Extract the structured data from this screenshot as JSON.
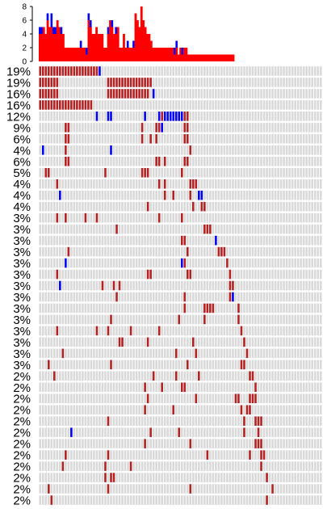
{
  "chart_data": [
    {
      "type": "bar",
      "stacked": true,
      "xlim": [
        0,
        100
      ],
      "ylim": [
        0,
        8
      ],
      "yticks": [
        "0",
        "2",
        "4",
        "6",
        "8"
      ],
      "colors": {
        "red": "#ff0000",
        "blue": "#0000ff"
      },
      "red": [
        4,
        4,
        5,
        4,
        6,
        5,
        5,
        4,
        4,
        6,
        5,
        4,
        4,
        2,
        2,
        2,
        2,
        2,
        2,
        2,
        2,
        2,
        2,
        2,
        1,
        6,
        5,
        4,
        4,
        5,
        4,
        4,
        4,
        2,
        2,
        4,
        6,
        5,
        4,
        4,
        5,
        2,
        2,
        4,
        2,
        2,
        2,
        2,
        2,
        7,
        6,
        5,
        8,
        6,
        5,
        4,
        4,
        3,
        2,
        2,
        2,
        2,
        2,
        2,
        2,
        2,
        2,
        2,
        2,
        1,
        2,
        1,
        2,
        1,
        2,
        2,
        1,
        1,
        1,
        1,
        1,
        1,
        1,
        1,
        1,
        1,
        1,
        1,
        1,
        1,
        1,
        1,
        1,
        1,
        1,
        1,
        1,
        1,
        1,
        1
      ],
      "blue": [
        1,
        1,
        0,
        0,
        1,
        0,
        2,
        1,
        1,
        0,
        0,
        1,
        0,
        0,
        0,
        0,
        0,
        0,
        0,
        0,
        0,
        1,
        0,
        0,
        1,
        1,
        1,
        0,
        0,
        0,
        0,
        0,
        0,
        0,
        0,
        1,
        0,
        1,
        0,
        1,
        0,
        0,
        0,
        0,
        0,
        1,
        0,
        0,
        1,
        0,
        0,
        0,
        0,
        0,
        0,
        0,
        0,
        0,
        0,
        0,
        0,
        0,
        0,
        0,
        0,
        0,
        0,
        0,
        0,
        1,
        1,
        0,
        0,
        1,
        0,
        0,
        0,
        0,
        0,
        0,
        0,
        0,
        0,
        0,
        0,
        0,
        0,
        0,
        0,
        0,
        0,
        0,
        0,
        0,
        0,
        0,
        0,
        0,
        0,
        0
      ]
    },
    {
      "type": "heatmap",
      "n_columns": 100,
      "colors": {
        "background": "#d9d9d9",
        "red": "#b22222",
        "blue": "#0000ff",
        "border": "#aaaaaa"
      },
      "rows": [
        {
          "label": "19%",
          "red": [
            0,
            1,
            2,
            3,
            4,
            5,
            6,
            7,
            8,
            9,
            10,
            11,
            12,
            13,
            14,
            15,
            16,
            17,
            18,
            19,
            20
          ],
          "blue": [
            21
          ]
        },
        {
          "label": "19%",
          "red": [
            0,
            1,
            2,
            3,
            4,
            5,
            6,
            24,
            25,
            26,
            27,
            28,
            29,
            30,
            31,
            32,
            33,
            34,
            35,
            36,
            37,
            38,
            39
          ],
          "blue": []
        },
        {
          "label": "16%",
          "red": [
            0,
            1,
            2,
            3,
            4,
            5,
            6,
            24,
            25,
            26,
            27,
            28,
            29,
            30,
            31,
            32,
            33,
            34,
            35,
            36,
            37,
            38
          ],
          "blue": [
            40
          ]
        },
        {
          "label": "16%",
          "red": [
            0,
            1,
            2,
            3,
            4,
            5,
            6,
            7,
            8,
            9,
            10,
            11,
            12,
            13,
            14,
            15,
            16,
            17,
            18
          ],
          "blue": []
        },
        {
          "label": "12%",
          "red": [
            43,
            51,
            52
          ],
          "blue": [
            20,
            24,
            25,
            37,
            42,
            44,
            45,
            46,
            47,
            48,
            49,
            50
          ]
        },
        {
          "label": "9%",
          "red": [
            9,
            10,
            36,
            41,
            42,
            51,
            52
          ],
          "blue": [
            43
          ]
        },
        {
          "label": "6%",
          "red": [
            9,
            10,
            36,
            39,
            41,
            51,
            52
          ],
          "blue": []
        },
        {
          "label": "4%",
          "red": [
            9,
            53
          ],
          "blue": [
            1,
            25
          ]
        },
        {
          "label": "6%",
          "red": [
            9,
            10,
            41,
            42,
            44,
            51,
            52
          ],
          "blue": []
        },
        {
          "label": "5%",
          "red": [
            2,
            3,
            23,
            36,
            37,
            38,
            50
          ],
          "blue": []
        },
        {
          "label": "4%",
          "red": [
            6,
            42,
            44,
            53,
            54,
            55
          ],
          "blue": []
        },
        {
          "label": "4%",
          "red": [
            44,
            47,
            53
          ],
          "blue": [
            7,
            56,
            57
          ]
        },
        {
          "label": "4%",
          "red": [
            38,
            54,
            57,
            58
          ],
          "blue": []
        },
        {
          "label": "3%",
          "red": [
            6,
            9,
            16,
            20,
            42,
            50
          ],
          "blue": []
        },
        {
          "label": "3%",
          "red": [
            27,
            58,
            59,
            60
          ],
          "blue": []
        },
        {
          "label": "3%",
          "red": [
            50,
            51
          ],
          "blue": [
            62
          ]
        },
        {
          "label": "3%",
          "red": [
            10,
            52,
            63,
            64,
            65
          ],
          "blue": []
        },
        {
          "label": "3%",
          "red": [
            51,
            66
          ],
          "blue": [
            9,
            50
          ]
        },
        {
          "label": "3%",
          "red": [
            6,
            38,
            39,
            52,
            53,
            67
          ],
          "blue": []
        },
        {
          "label": "3%",
          "red": [
            22,
            26,
            28,
            67,
            68
          ],
          "blue": [
            7
          ]
        },
        {
          "label": "3%",
          "red": [
            27,
            51,
            67
          ],
          "blue": [
            68
          ]
        },
        {
          "label": "3%",
          "red": [
            51,
            58,
            59,
            60,
            61,
            70
          ],
          "blue": []
        },
        {
          "label": "3%",
          "red": [
            25,
            49,
            58,
            70
          ],
          "blue": []
        },
        {
          "label": "3%",
          "red": [
            6,
            20,
            24,
            32,
            42,
            71
          ],
          "blue": []
        },
        {
          "label": "3%",
          "red": [
            28,
            29,
            38,
            54,
            72
          ],
          "blue": []
        },
        {
          "label": "3%",
          "red": [
            8,
            48,
            55,
            73
          ],
          "blue": []
        },
        {
          "label": "3%",
          "red": [
            3,
            25,
            52,
            71,
            72
          ],
          "blue": []
        },
        {
          "label": "2%",
          "red": [
            5,
            40,
            48,
            56,
            74,
            75
          ],
          "blue": []
        },
        {
          "label": "2%",
          "red": [
            37,
            43,
            50,
            51,
            76
          ],
          "blue": []
        },
        {
          "label": "2%",
          "red": [
            38,
            55,
            69,
            70,
            74,
            75,
            76
          ],
          "blue": []
        },
        {
          "label": "2%",
          "red": [
            37,
            47,
            71,
            73,
            74
          ],
          "blue": []
        },
        {
          "label": "2%",
          "red": [
            24,
            72,
            76,
            77,
            78
          ],
          "blue": []
        },
        {
          "label": "2%",
          "red": [
            39,
            49,
            72,
            77
          ],
          "blue": [
            11
          ]
        },
        {
          "label": "2%",
          "red": [
            37,
            53,
            76,
            77,
            78
          ],
          "blue": []
        },
        {
          "label": "2%",
          "red": [
            9,
            24,
            59,
            74,
            78,
            79
          ],
          "blue": []
        },
        {
          "label": "2%",
          "red": [
            8,
            23,
            32,
            78
          ],
          "blue": []
        },
        {
          "label": "2%",
          "red": [
            23,
            25,
            26,
            80
          ],
          "blue": []
        },
        {
          "label": "2%",
          "red": [
            3,
            24,
            53,
            82
          ],
          "blue": []
        },
        {
          "label": "2%",
          "red": [
            4,
            80
          ],
          "blue": []
        }
      ]
    }
  ]
}
